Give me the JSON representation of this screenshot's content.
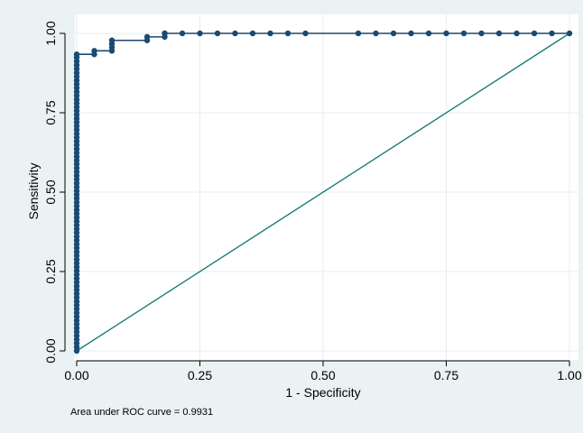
{
  "chart_data": {
    "type": "line",
    "xlabel": "1 - Specificity",
    "ylabel": "Sensitivity",
    "xlim": [
      0,
      1
    ],
    "ylim": [
      0,
      1
    ],
    "x_ticks": [
      "0.00",
      "0.25",
      "0.50",
      "0.75",
      "1.00"
    ],
    "y_ticks": [
      "0.00",
      "0.25",
      "0.50",
      "0.75",
      "1.00"
    ],
    "grid": true,
    "note": "Area under ROC curve = 0.9931",
    "colors": {
      "roc": "#1a4a72",
      "reference": "#1a7b78",
      "plot_bg": "#ffffff",
      "grid": "#e6eef0",
      "page_bg": "#eaf2f3"
    },
    "series": [
      {
        "kind": "roc",
        "marker": "circle",
        "x": [
          0,
          0,
          0,
          0,
          0,
          0,
          0,
          0,
          0,
          0,
          0,
          0,
          0,
          0,
          0,
          0,
          0,
          0,
          0,
          0,
          0,
          0,
          0,
          0,
          0,
          0,
          0,
          0,
          0,
          0,
          0,
          0,
          0,
          0,
          0,
          0,
          0,
          0,
          0,
          0,
          0,
          0,
          0,
          0,
          0,
          0,
          0,
          0,
          0,
          0,
          0,
          0,
          0,
          0,
          0,
          0,
          0,
          0,
          0,
          0,
          0,
          0,
          0,
          0,
          0,
          0,
          0,
          0,
          0,
          0,
          0,
          0,
          0,
          0,
          0,
          0,
          0,
          0,
          0,
          0.0357,
          0.0357,
          0.0714,
          0.0714,
          0.0714,
          0.0714,
          0.1429,
          0.1429,
          0.1786,
          0.1786,
          0.1786,
          0.2143,
          0.25,
          0.2857,
          0.3214,
          0.3571,
          0.3929,
          0.4286,
          0.4643,
          0.5714,
          0.6071,
          0.6429,
          0.6786,
          0.7143,
          0.75,
          0.7857,
          0.8214,
          0.8571,
          0.8929,
          0.9286,
          0.9643,
          1.0
        ],
        "y": [
          0,
          0.012,
          0.024,
          0.036,
          0.048,
          0.06,
          0.072,
          0.084,
          0.096,
          0.108,
          0.12,
          0.132,
          0.144,
          0.156,
          0.168,
          0.18,
          0.192,
          0.204,
          0.216,
          0.228,
          0.24,
          0.252,
          0.264,
          0.276,
          0.288,
          0.3,
          0.312,
          0.324,
          0.336,
          0.348,
          0.36,
          0.372,
          0.384,
          0.396,
          0.408,
          0.42,
          0.432,
          0.444,
          0.456,
          0.468,
          0.48,
          0.492,
          0.504,
          0.516,
          0.528,
          0.54,
          0.552,
          0.564,
          0.576,
          0.588,
          0.6,
          0.612,
          0.624,
          0.636,
          0.648,
          0.66,
          0.672,
          0.684,
          0.696,
          0.708,
          0.72,
          0.732,
          0.744,
          0.756,
          0.768,
          0.78,
          0.792,
          0.804,
          0.816,
          0.828,
          0.84,
          0.852,
          0.864,
          0.876,
          0.888,
          0.9,
          0.912,
          0.924,
          0.934,
          0.934,
          0.945,
          0.945,
          0.956,
          0.967,
          0.978,
          0.978,
          0.989,
          0.989,
          1.0,
          1.0,
          1.0,
          1.0,
          1.0,
          1.0,
          1.0,
          1.0,
          1.0,
          1.0,
          1.0,
          1.0,
          1.0,
          1.0,
          1.0,
          1.0,
          1.0,
          1.0,
          1.0,
          1.0,
          1.0,
          1.0,
          1.0
        ]
      },
      {
        "kind": "reference",
        "marker": "none",
        "x": [
          0,
          1
        ],
        "y": [
          0,
          1
        ]
      }
    ]
  }
}
